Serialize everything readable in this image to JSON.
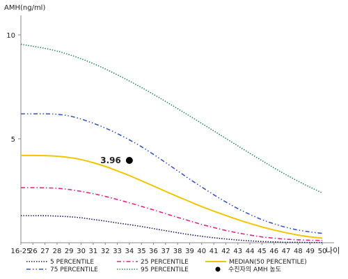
{
  "chart_data": {
    "type": "line",
    "ylabel": "AMH(ng/ml)",
    "xlabel": "나이",
    "ylim": [
      0,
      11
    ],
    "y_ticks": [
      5,
      10
    ],
    "categories": [
      "16-25",
      "26",
      "27",
      "28",
      "29",
      "30",
      "31",
      "32",
      "33",
      "34",
      "35",
      "36",
      "37",
      "38",
      "39",
      "40",
      "41",
      "42",
      "43",
      "44",
      "45",
      "46",
      "47",
      "48",
      "49",
      "50"
    ],
    "series": [
      {
        "name": "5 PERCENTILE",
        "color": "#1a1a5e",
        "dash": "dotted",
        "values": [
          1.3,
          1.3,
          1.3,
          1.28,
          1.25,
          1.2,
          1.12,
          1.04,
          0.95,
          0.87,
          0.78,
          0.68,
          0.58,
          0.48,
          0.39,
          0.31,
          0.24,
          0.18,
          0.13,
          0.09,
          0.06,
          0.04,
          0.02,
          0.02,
          0.01,
          0.01
        ]
      },
      {
        "name": "25 PERCENTILE",
        "color": "#e0288a",
        "dash": "dash-dot",
        "values": [
          2.65,
          2.65,
          2.64,
          2.62,
          2.56,
          2.47,
          2.36,
          2.23,
          2.08,
          1.92,
          1.75,
          1.58,
          1.4,
          1.22,
          1.05,
          0.88,
          0.73,
          0.59,
          0.47,
          0.37,
          0.28,
          0.22,
          0.17,
          0.14,
          0.12,
          0.11
        ]
      },
      {
        "name": "MEDIAN(50 PERCENTILE)",
        "color": "#f2c500",
        "dash": "solid",
        "values": [
          4.2,
          4.2,
          4.19,
          4.16,
          4.1,
          4.0,
          3.85,
          3.67,
          3.46,
          3.23,
          2.98,
          2.73,
          2.47,
          2.22,
          1.98,
          1.74,
          1.52,
          1.31,
          1.11,
          0.93,
          0.76,
          0.61,
          0.48,
          0.37,
          0.28,
          0.22
        ]
      },
      {
        "name": "75 PERCENTILE",
        "color": "#3a55c4",
        "dash": "dash-dot-dot",
        "values": [
          6.2,
          6.2,
          6.2,
          6.18,
          6.1,
          5.95,
          5.75,
          5.52,
          5.25,
          4.95,
          4.62,
          4.25,
          3.86,
          3.46,
          3.06,
          2.68,
          2.31,
          1.96,
          1.64,
          1.36,
          1.11,
          0.91,
          0.74,
          0.61,
          0.52,
          0.45
        ]
      },
      {
        "name": "95 PERCENTILE",
        "color": "#2e8b57",
        "dash": "dotted",
        "values": [
          9.55,
          9.45,
          9.35,
          9.22,
          9.05,
          8.85,
          8.62,
          8.36,
          8.08,
          7.78,
          7.47,
          7.14,
          6.8,
          6.45,
          6.1,
          5.74,
          5.38,
          5.02,
          4.66,
          4.3,
          3.95,
          3.6,
          3.27,
          2.96,
          2.67,
          2.4
        ]
      }
    ],
    "marker": {
      "name": "수진자의 AMH 농도",
      "x": "34",
      "y": 3.96,
      "label": "3.96",
      "color": "#000000"
    }
  }
}
